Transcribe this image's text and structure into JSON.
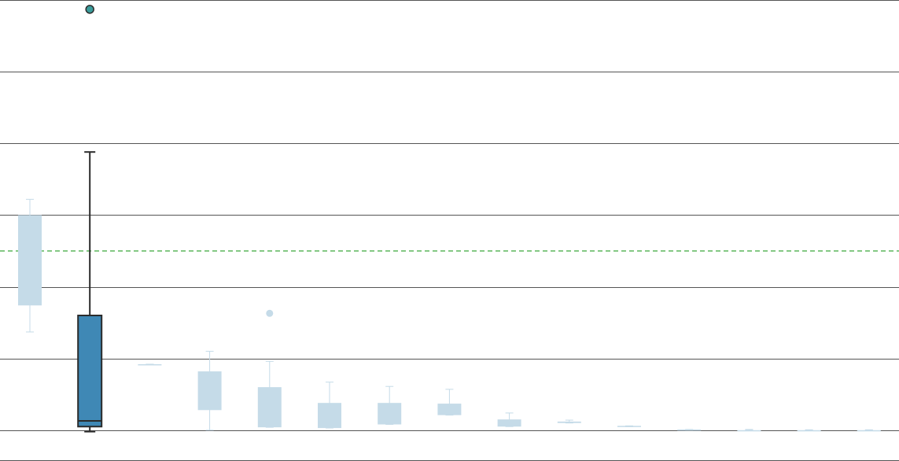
{
  "chart_data": {
    "type": "box",
    "title": "",
    "xlabel": "",
    "ylabel": "",
    "ylim": [
      -0.43,
      6.0
    ],
    "gridlines": [
      0,
      1,
      2,
      3,
      4,
      5,
      6
    ],
    "grid": "horizontal",
    "reference_line": {
      "value": 2.5,
      "style": "dashed",
      "color": "#3aa63a"
    },
    "highlighted_index": 1,
    "colors": {
      "highlight_fill": "#3f88b5",
      "highlight_edge": "#2b2b2b",
      "faded": "#c5dbe8",
      "outlier_fill": "#3a9c9b",
      "grid": "#555555"
    },
    "boxes": [
      {
        "whisker_low": 1.37,
        "q1": 1.74,
        "median": 3.0,
        "q3": 3.0,
        "whisker_high": 3.22,
        "outliers": []
      },
      {
        "whisker_low": -0.02,
        "q1": 0.05,
        "median": 0.13,
        "q3": 1.6,
        "whisker_high": 3.88,
        "outliers": [
          5.87
        ]
      },
      {
        "whisker_low": 0.92,
        "q1": 0.92,
        "median": 0.92,
        "q3": 0.92,
        "whisker_high": 0.92,
        "outliers": []
      },
      {
        "whisker_low": 0.0,
        "q1": 0.28,
        "median": 0.82,
        "q3": 0.82,
        "whisker_high": 1.1,
        "outliers": []
      },
      {
        "whisker_low": 0.04,
        "q1": 0.04,
        "median": 0.6,
        "q3": 0.6,
        "whisker_high": 0.96,
        "outliers": [
          1.63
        ]
      },
      {
        "whisker_low": 0.03,
        "q1": 0.03,
        "median": 0.38,
        "q3": 0.38,
        "whisker_high": 0.67,
        "outliers": []
      },
      {
        "whisker_low": 0.08,
        "q1": 0.08,
        "median": 0.38,
        "q3": 0.38,
        "whisker_high": 0.61,
        "outliers": []
      },
      {
        "whisker_low": 0.21,
        "q1": 0.21,
        "median": 0.37,
        "q3": 0.37,
        "whisker_high": 0.57,
        "outliers": []
      },
      {
        "whisker_low": 0.05,
        "q1": 0.05,
        "median": 0.15,
        "q3": 0.15,
        "whisker_high": 0.24,
        "outliers": []
      },
      {
        "whisker_low": 0.1,
        "q1": 0.1,
        "median": 0.12,
        "q3": 0.12,
        "whisker_high": 0.14,
        "outliers": []
      },
      {
        "whisker_low": 0.05,
        "q1": 0.05,
        "median": 0.06,
        "q3": 0.06,
        "whisker_high": 0.06,
        "outliers": []
      },
      {
        "whisker_low": 0.0,
        "q1": 0.0,
        "median": 0.01,
        "q3": 0.01,
        "whisker_high": 0.01,
        "outliers": []
      },
      {
        "whisker_low": 0.0,
        "q1": 0.0,
        "median": 0.0,
        "q3": 0.0,
        "whisker_high": 0.01,
        "outliers": []
      },
      {
        "whisker_low": 0.0,
        "q1": 0.0,
        "median": 0.0,
        "q3": 0.0,
        "whisker_high": 0.005,
        "outliers": []
      },
      {
        "whisker_low": 0.0,
        "q1": 0.0,
        "median": 0.0,
        "q3": 0.0,
        "whisker_high": 0.005,
        "outliers": []
      }
    ]
  }
}
